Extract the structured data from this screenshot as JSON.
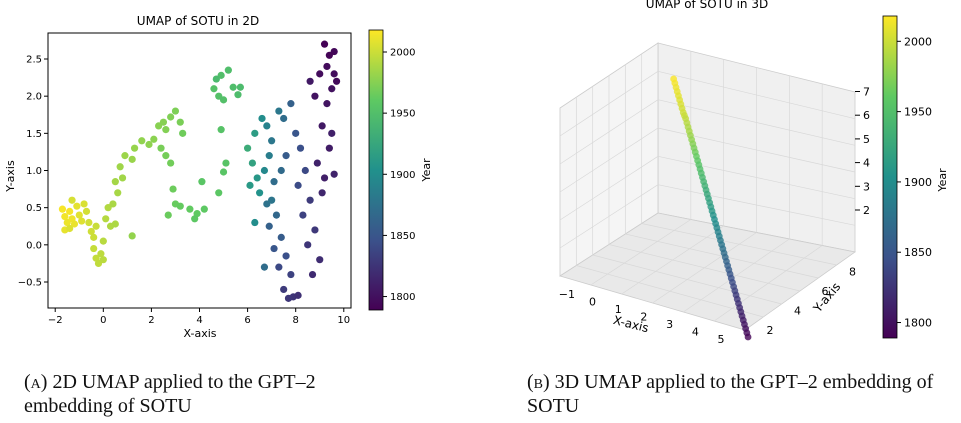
{
  "chart_data": [
    {
      "type": "scatter",
      "title": "UMAP of SOTU in 2D",
      "xlabel": "X-axis",
      "ylabel": "Y-axis",
      "xlim": [
        -2.3,
        10.3
      ],
      "ylim": [
        -0.85,
        2.85
      ],
      "xticks": [
        "−2",
        "0",
        "2",
        "4",
        "6",
        "8",
        "10"
      ],
      "yticks": [
        "−0.5",
        "0.0",
        "0.5",
        "1.0",
        "1.5",
        "2.0",
        "2.5"
      ],
      "colorbar": {
        "label": "Year",
        "range": [
          1789,
          2018
        ],
        "ticks": [
          "1800",
          "1850",
          "1900",
          "1950",
          "2000"
        ]
      },
      "colormap": [
        "#440154",
        "#3b528b",
        "#21918c",
        "#5ec962",
        "#fde725"
      ],
      "points": [
        [
          -1.7,
          0.48,
          2016
        ],
        [
          -1.6,
          0.38,
          2014
        ],
        [
          -1.5,
          0.3,
          2012
        ],
        [
          -1.4,
          0.45,
          2015
        ],
        [
          -1.3,
          0.35,
          2013
        ],
        [
          -1.2,
          0.28,
          2011
        ],
        [
          -1.6,
          0.2,
          2010
        ],
        [
          -1.1,
          0.52,
          2009
        ],
        [
          -1.0,
          0.4,
          2008
        ],
        [
          -0.9,
          0.32,
          2007
        ],
        [
          -1.4,
          0.22,
          2006
        ],
        [
          -0.8,
          0.55,
          2005
        ],
        [
          -1.3,
          0.6,
          2004
        ],
        [
          -0.7,
          0.45,
          2003
        ],
        [
          -0.6,
          0.3,
          2002
        ],
        [
          -0.5,
          0.18,
          2001
        ],
        [
          -0.4,
          0.1,
          2000
        ],
        [
          -0.3,
          0.25,
          1999
        ],
        [
          -0.4,
          -0.05,
          1998
        ],
        [
          -0.3,
          -0.18,
          1997
        ],
        [
          -0.2,
          -0.25,
          1996
        ],
        [
          -0.1,
          -0.12,
          1995
        ],
        [
          0.0,
          -0.2,
          1994
        ],
        [
          0.0,
          0.05,
          1993
        ],
        [
          0.1,
          0.35,
          1992
        ],
        [
          0.2,
          0.5,
          1991
        ],
        [
          0.3,
          0.25,
          1990
        ],
        [
          0.5,
          0.28,
          1989
        ],
        [
          0.4,
          0.55,
          1988
        ],
        [
          0.6,
          0.7,
          1987
        ],
        [
          0.5,
          0.85,
          1986
        ],
        [
          0.8,
          0.9,
          1985
        ],
        [
          0.7,
          1.05,
          1984
        ],
        [
          0.9,
          1.2,
          1983
        ],
        [
          1.2,
          1.15,
          1982
        ],
        [
          1.3,
          1.3,
          1981
        ],
        [
          1.2,
          0.12,
          1980
        ],
        [
          1.6,
          1.4,
          1979
        ],
        [
          1.9,
          1.35,
          1978
        ],
        [
          2.1,
          1.42,
          1977
        ],
        [
          2.3,
          1.6,
          1976
        ],
        [
          2.5,
          1.65,
          1975
        ],
        [
          2.6,
          1.55,
          1974
        ],
        [
          2.8,
          1.72,
          1973
        ],
        [
          3.0,
          1.8,
          1972
        ],
        [
          3.2,
          1.65,
          1971
        ],
        [
          2.4,
          1.3,
          1970
        ],
        [
          2.6,
          1.2,
          1969
        ],
        [
          2.8,
          1.1,
          1968
        ],
        [
          3.3,
          1.5,
          1967
        ],
        [
          2.9,
          0.75,
          1966
        ],
        [
          2.7,
          0.4,
          1965
        ],
        [
          3.0,
          0.55,
          1964
        ],
        [
          3.2,
          0.52,
          1963
        ],
        [
          3.6,
          0.48,
          1962
        ],
        [
          3.9,
          0.42,
          1961
        ],
        [
          4.2,
          0.48,
          1960
        ],
        [
          3.8,
          0.35,
          1959
        ],
        [
          4.8,
          0.7,
          1958
        ],
        [
          4.1,
          0.85,
          1957
        ],
        [
          5.0,
          0.98,
          1956
        ],
        [
          5.1,
          1.1,
          1955
        ],
        [
          4.9,
          1.55,
          1954
        ],
        [
          4.6,
          2.1,
          1953
        ],
        [
          4.8,
          2.0,
          1952
        ],
        [
          5.0,
          1.95,
          1951
        ],
        [
          4.9,
          2.28,
          1950
        ],
        [
          5.2,
          2.35,
          1949
        ],
        [
          5.4,
          2.12,
          1948
        ],
        [
          5.6,
          2.02,
          1947
        ],
        [
          5.7,
          2.12,
          1946
        ],
        [
          4.7,
          2.23,
          1945
        ],
        [
          6.0,
          1.3,
          1930
        ],
        [
          6.2,
          1.1,
          1920
        ],
        [
          6.4,
          0.9,
          1910
        ],
        [
          6.1,
          0.8,
          1912
        ],
        [
          6.5,
          0.7,
          1905
        ],
        [
          6.3,
          1.5,
          1915
        ],
        [
          6.6,
          1.7,
          1900
        ],
        [
          6.8,
          1.6,
          1890
        ],
        [
          7.0,
          1.4,
          1880
        ],
        [
          6.9,
          1.2,
          1885
        ],
        [
          6.7,
          1.0,
          1895
        ],
        [
          7.1,
          0.85,
          1870
        ],
        [
          6.8,
          0.55,
          1875
        ],
        [
          7.2,
          0.4,
          1865
        ],
        [
          6.9,
          0.25,
          1860
        ],
        [
          7.4,
          0.1,
          1855
        ],
        [
          7.1,
          -0.05,
          1850
        ],
        [
          7.6,
          -0.15,
          1845
        ],
        [
          7.3,
          -0.3,
          1840
        ],
        [
          7.8,
          -0.4,
          1835
        ],
        [
          7.5,
          -0.6,
          1830
        ],
        [
          7.9,
          -0.7,
          1825
        ],
        [
          8.1,
          -0.68,
          1822
        ],
        [
          7.7,
          -0.72,
          1827
        ],
        [
          7.3,
          1.8,
          1880
        ],
        [
          7.5,
          1.7,
          1870
        ],
        [
          7.8,
          1.9,
          1860
        ],
        [
          8.0,
          1.5,
          1850
        ],
        [
          8.2,
          1.3,
          1845
        ],
        [
          7.6,
          1.2,
          1855
        ],
        [
          8.4,
          1.0,
          1840
        ],
        [
          8.1,
          0.8,
          1842
        ],
        [
          8.6,
          0.6,
          1830
        ],
        [
          8.3,
          0.4,
          1835
        ],
        [
          8.8,
          0.2,
          1828
        ],
        [
          8.5,
          0.0,
          1826
        ],
        [
          9.0,
          -0.2,
          1820
        ],
        [
          8.7,
          -0.4,
          1818
        ],
        [
          9.1,
          0.7,
          1815
        ],
        [
          9.2,
          0.9,
          1810
        ],
        [
          8.9,
          1.1,
          1812
        ],
        [
          9.4,
          1.3,
          1808
        ],
        [
          9.1,
          1.6,
          1805
        ],
        [
          9.3,
          1.9,
          1803
        ],
        [
          9.5,
          2.1,
          1800
        ],
        [
          9.6,
          2.3,
          1798
        ],
        [
          9.3,
          2.4,
          1796
        ],
        [
          9.6,
          2.6,
          1793
        ],
        [
          9.4,
          2.55,
          1791
        ],
        [
          9.7,
          2.2,
          1795
        ],
        [
          9.2,
          2.7,
          1790
        ],
        [
          9.0,
          2.3,
          1797
        ],
        [
          8.8,
          2.0,
          1802
        ],
        [
          8.6,
          2.2,
          1806
        ],
        [
          9.5,
          1.5,
          1811
        ],
        [
          9.6,
          0.95,
          1813
        ],
        [
          6.3,
          0.3,
          1900
        ],
        [
          6.7,
          -0.3,
          1870
        ],
        [
          7.0,
          0.6,
          1878
        ],
        [
          7.4,
          1.0,
          1868
        ]
      ]
    },
    {
      "type": "scatter",
      "title": "UMAP of SOTU in 3D",
      "xlabel": "X-axis",
      "ylabel": "Y-axis",
      "xticks": [
        "−1",
        "0",
        "1",
        "2",
        "3",
        "4",
        "5"
      ],
      "yticks": [
        "2",
        "4",
        "6",
        "8"
      ],
      "zticks": [
        "2",
        "3",
        "4",
        "5",
        "6",
        "7"
      ],
      "colorbar": {
        "label": "Year",
        "range": [
          1789,
          2018
        ],
        "ticks": [
          "1800",
          "1850",
          "1900",
          "1950",
          "2000"
        ]
      },
      "colormap": [
        "#440154",
        "#3b528b",
        "#21918c",
        "#5ec962",
        "#fde725"
      ],
      "points": [
        [
          -1.0,
          8.3,
          7.2,
          2017
        ],
        [
          -0.9,
          8.2,
          7.1,
          2015
        ],
        [
          -0.8,
          8.1,
          7.0,
          2013
        ],
        [
          -0.7,
          8.0,
          6.9,
          2011
        ],
        [
          -0.6,
          7.9,
          6.8,
          2009
        ],
        [
          -0.5,
          7.8,
          6.7,
          2007
        ],
        [
          -0.4,
          7.7,
          6.6,
          2005
        ],
        [
          -0.3,
          7.6,
          6.5,
          2003
        ],
        [
          -0.2,
          7.5,
          6.4,
          2001
        ],
        [
          -0.1,
          7.4,
          6.35,
          1999
        ],
        [
          0.0,
          7.3,
          6.3,
          1996
        ],
        [
          0.1,
          7.2,
          6.2,
          1993
        ],
        [
          0.2,
          7.1,
          6.1,
          1990
        ],
        [
          0.3,
          7.0,
          6.0,
          1987
        ],
        [
          0.4,
          6.9,
          5.9,
          1983
        ],
        [
          0.5,
          6.8,
          5.8,
          1979
        ],
        [
          0.6,
          6.7,
          5.7,
          1975
        ],
        [
          0.7,
          6.6,
          5.6,
          1971
        ],
        [
          0.8,
          6.5,
          5.5,
          1967
        ],
        [
          0.9,
          6.4,
          5.4,
          1963
        ],
        [
          1.0,
          6.3,
          5.3,
          1959
        ],
        [
          1.1,
          6.2,
          5.2,
          1955
        ],
        [
          1.2,
          6.1,
          5.1,
          1951
        ],
        [
          1.3,
          6.0,
          5.0,
          1947
        ],
        [
          1.4,
          5.9,
          4.9,
          1943
        ],
        [
          1.5,
          5.8,
          4.8,
          1939
        ],
        [
          1.6,
          5.7,
          4.7,
          1935
        ],
        [
          1.7,
          5.6,
          4.6,
          1931
        ],
        [
          1.8,
          5.5,
          4.5,
          1927
        ],
        [
          1.9,
          5.4,
          4.4,
          1923
        ],
        [
          2.0,
          5.3,
          4.3,
          1919
        ],
        [
          2.1,
          5.2,
          4.2,
          1915
        ],
        [
          2.2,
          5.1,
          4.1,
          1911
        ],
        [
          2.3,
          5.0,
          4.0,
          1907
        ],
        [
          2.4,
          4.9,
          3.9,
          1903
        ],
        [
          2.5,
          4.8,
          3.8,
          1899
        ],
        [
          2.6,
          4.7,
          3.7,
          1895
        ],
        [
          2.7,
          4.6,
          3.6,
          1891
        ],
        [
          2.8,
          4.5,
          3.5,
          1887
        ],
        [
          2.9,
          4.4,
          3.4,
          1883
        ],
        [
          3.0,
          4.3,
          3.3,
          1879
        ],
        [
          3.1,
          4.2,
          3.2,
          1875
        ],
        [
          3.2,
          4.1,
          3.1,
          1871
        ],
        [
          3.3,
          4.0,
          3.0,
          1867
        ],
        [
          3.4,
          3.9,
          2.9,
          1863
        ],
        [
          3.5,
          3.8,
          2.8,
          1859
        ],
        [
          3.6,
          3.7,
          2.7,
          1855
        ],
        [
          3.7,
          3.6,
          2.6,
          1851
        ],
        [
          3.8,
          3.5,
          2.5,
          1847
        ],
        [
          3.9,
          3.4,
          2.4,
          1843
        ],
        [
          4.0,
          3.3,
          2.3,
          1839
        ],
        [
          4.1,
          3.2,
          2.2,
          1835
        ],
        [
          4.2,
          3.1,
          2.1,
          1831
        ],
        [
          4.3,
          3.0,
          2.0,
          1827
        ],
        [
          4.4,
          2.9,
          1.9,
          1823
        ],
        [
          4.5,
          2.8,
          1.8,
          1819
        ],
        [
          4.6,
          2.7,
          1.7,
          1815
        ],
        [
          4.7,
          2.6,
          1.6,
          1811
        ],
        [
          4.8,
          2.5,
          1.5,
          1807
        ],
        [
          4.9,
          2.4,
          1.4,
          1803
        ],
        [
          5.0,
          2.3,
          1.3,
          1799
        ],
        [
          5.1,
          2.2,
          1.2,
          1795
        ],
        [
          5.2,
          2.1,
          1.1,
          1791
        ]
      ]
    }
  ],
  "captions": [
    {
      "label": "(a)",
      "text": "2D UMAP applied to the GPT–2 embedding of SOTU"
    },
    {
      "label": "(b)",
      "text": "3D UMAP applied to the GPT–2 embedding of SOTU"
    }
  ]
}
